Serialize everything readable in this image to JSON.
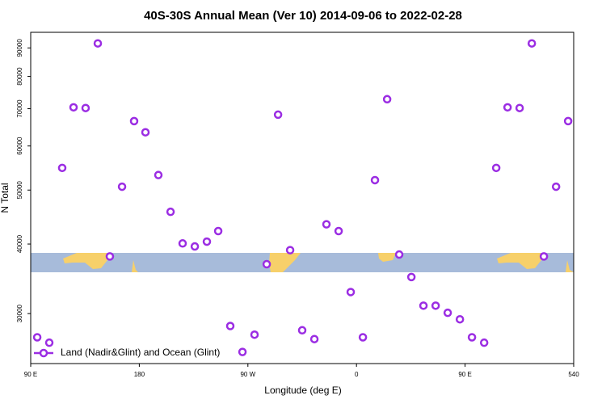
{
  "chart_data": {
    "type": "scatter",
    "title": "40S-30S Annual Mean (Ver 10)   2014-09-06 to 2022-02-28",
    "x_label": "Longitude (deg E)",
    "y_label": "N Total",
    "log_y": true,
    "xlim": [
      90,
      540
    ],
    "xticks": [
      {
        "value": 90,
        "label": "90 E"
      },
      180,
      {
        "value": 270,
        "label": "90 W"
      },
      {
        "value": 360,
        "label": "0"
      },
      {
        "value": 450,
        "label": "90 E"
      },
      540
    ],
    "ylim": [
      24400,
      96000
    ],
    "yticks": [
      30000,
      40000,
      50000,
      60000,
      70000,
      80000,
      90000
    ],
    "legend": "lower left",
    "series": [
      {
        "name": "Land (Nadir&Glint) and Ocean (Glint)",
        "color": "#9b2de3",
        "x": [
          95.4,
          105.4,
          116.1,
          125.5,
          135.5,
          145.6,
          155.6,
          165.7,
          175.7,
          185.1,
          195.8,
          205.9,
          215.9,
          226.0,
          236.0,
          245.4,
          255.4,
          265.5,
          275.5,
          285.6,
          295.0,
          305.0,
          315.0,
          325.1,
          335.1,
          345.2,
          355.2,
          365.3,
          375.3,
          385.4,
          395.4,
          405.5,
          415.5,
          425.6,
          435.6,
          445.7,
          455.7,
          465.8,
          475.8,
          485.2,
          495.2,
          505.3,
          515.3,
          525.4,
          535.4
        ],
        "values": [
          27200,
          26600,
          54800,
          70400,
          70200,
          91700,
          38000,
          50700,
          66500,
          63500,
          53200,
          45700,
          40100,
          39600,
          40400,
          42200,
          28500,
          25600,
          27500,
          36800,
          68300,
          39000,
          28000,
          27000,
          43400,
          42200,
          32800,
          27200,
          52100,
          72800,
          38300,
          34900,
          31000,
          31000,
          30100,
          29300,
          27200,
          26600,
          54800,
          70400,
          70200,
          91700,
          38000,
          50700,
          66500
        ]
      }
    ]
  }
}
